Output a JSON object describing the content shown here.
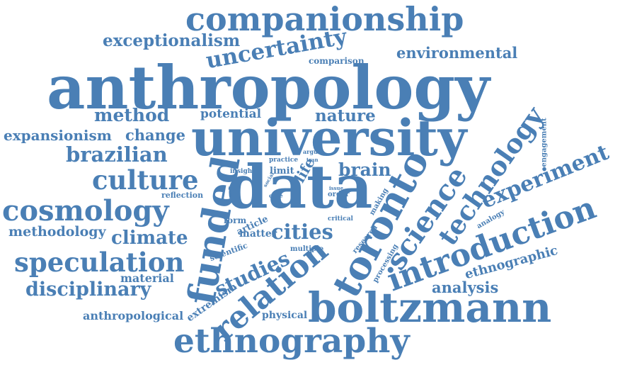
{
  "colors": {
    "word": "#4a7fb5",
    "background": "#ffffff"
  },
  "words": [
    "companionship",
    "exceptionalism",
    "uncertainty",
    "environmental",
    "comparison",
    "anthropology",
    "method",
    "potential",
    "nature",
    "expansionism",
    "change",
    "university",
    "brazilian",
    "engagement",
    "technology",
    "argue",
    "practice",
    "insight",
    "limit",
    "life",
    "brain",
    "culture",
    "social",
    "tran",
    "reflection",
    "case",
    "issue",
    "order",
    "data",
    "funded",
    "toronto",
    "science",
    "experiment",
    "cosmology",
    "making",
    "analogy",
    "methodology",
    "form",
    "critical",
    "article",
    "climate",
    "matter",
    "cities",
    "introduction",
    "research",
    "scientific",
    "multiple",
    "speculation",
    "processing",
    "studies",
    "ethnographic",
    "material",
    "relation",
    "disciplinary",
    "analysis",
    "extremism",
    "boltzmann",
    "anthropological",
    "physical",
    "ethnography"
  ]
}
